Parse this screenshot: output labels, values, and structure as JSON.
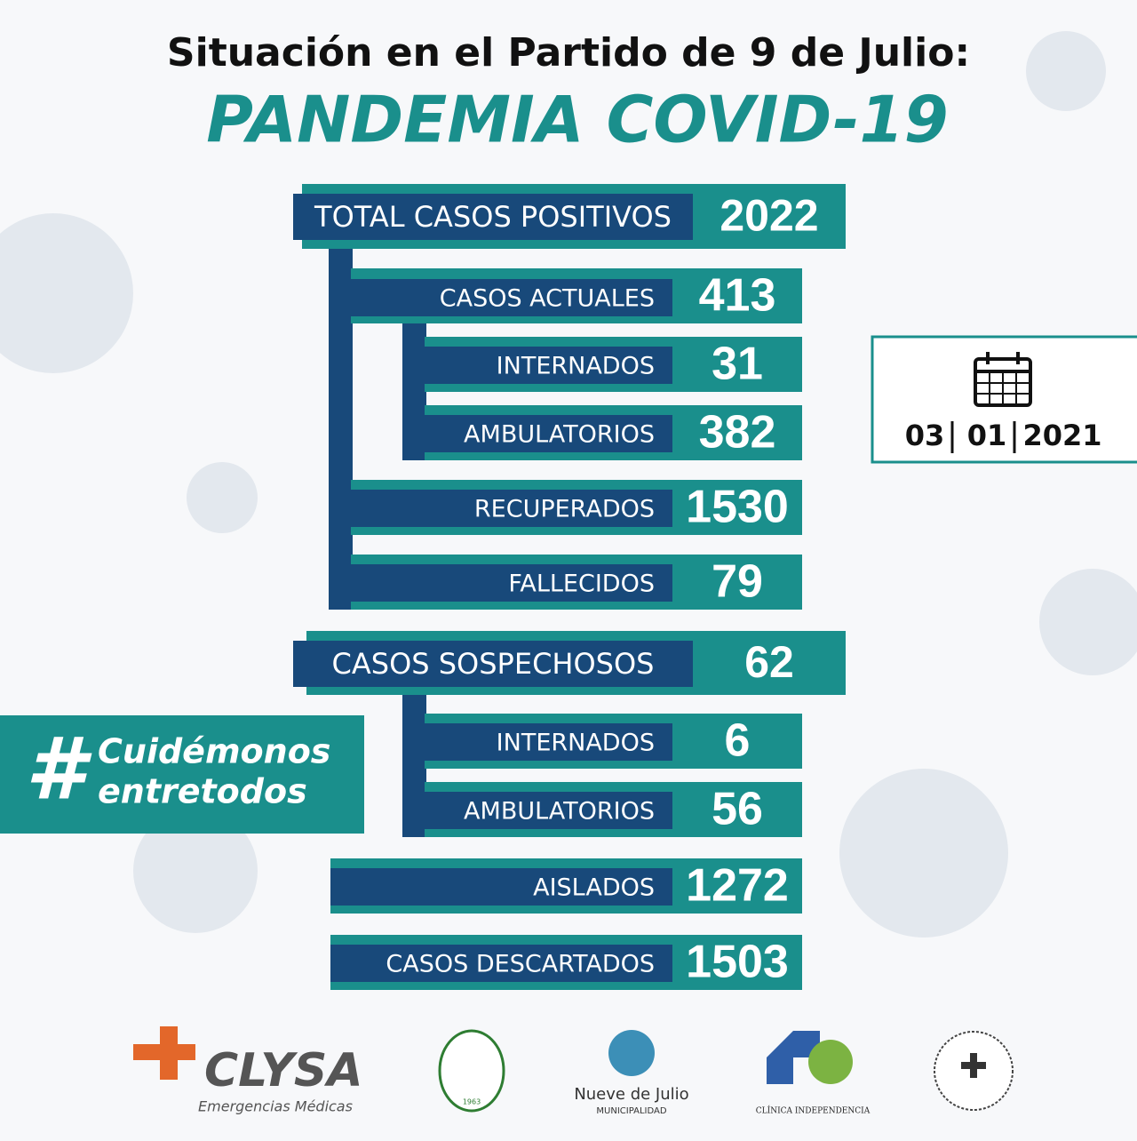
{
  "header": {
    "subtitle": "Situación en el Partido de 9 de Julio:",
    "title": "PANDEMIA COVID-19"
  },
  "rows": [
    {
      "label": "TOTAL CASOS POSITIVOS",
      "value": "2022"
    },
    {
      "label": "CASOS ACTUALES",
      "value": "413"
    },
    {
      "label": "INTERNADOS",
      "value": "31"
    },
    {
      "label": "AMBULATORIOS",
      "value": "382"
    },
    {
      "label": "RECUPERADOS",
      "value": "1530"
    },
    {
      "label": "FALLECIDOS",
      "value": "79"
    },
    {
      "label": "CASOS SOSPECHOSOS",
      "value": "62"
    },
    {
      "label": "INTERNADOS",
      "value": "6"
    },
    {
      "label": "AMBULATORIOS",
      "value": "56"
    },
    {
      "label": "AISLADOS",
      "value": "1272"
    },
    {
      "label": "CASOS DESCARTADOS",
      "value": "1503"
    }
  ],
  "date": {
    "day": "03",
    "month": "01",
    "year": "2021"
  },
  "hashtag": {
    "symbol": "#",
    "line1": "Cuidémonos",
    "line2": "entretodos"
  },
  "logos": {
    "clysa": "CLYSA",
    "clysa_sub": "Emergencias Médicas",
    "nueve": "Nueve de Julio",
    "nueve_sub": "MUNICIPALIDAD",
    "clinica": "CLÍNICA INDEPENDENCIA",
    "circulo_year": "1963"
  }
}
